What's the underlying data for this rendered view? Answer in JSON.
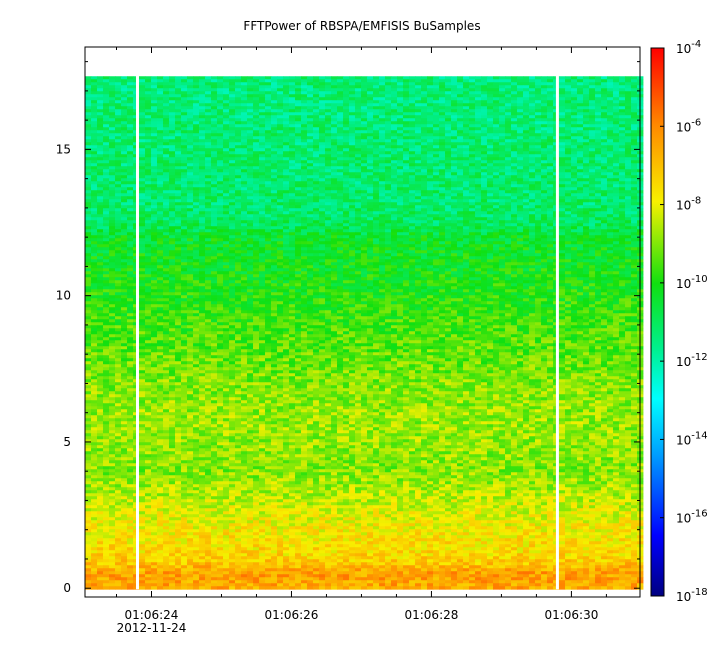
{
  "chart_data": {
    "type": "heatmap",
    "title": "FFTPower of RBSPA/EMFISIS  BuSamples",
    "xlabel": "",
    "ylabel": "",
    "x": {
      "ticks": [
        "01:06:24",
        "01:06:26",
        "01:06:28",
        "01:06:30"
      ],
      "date_label": "2012-11-24",
      "range_seconds": [
        "01:06:23.05",
        "01:06:30.98"
      ]
    },
    "ylim": [
      -0.3,
      18.5
    ],
    "yticks": [
      0,
      5,
      10,
      15
    ],
    "data_ylim": [
      0,
      17.5
    ],
    "gaps": [
      "01:06:23.8",
      "01:06:29.8"
    ],
    "colorbar": {
      "scale": "log",
      "range": [
        1e-18,
        0.0001
      ],
      "tick_labels": [
        {
          "base": "10",
          "exp": "-4"
        },
        {
          "base": "10",
          "exp": "-6"
        },
        {
          "base": "10",
          "exp": "-8"
        },
        {
          "base": "10",
          "exp": "-10"
        },
        {
          "base": "10",
          "exp": "-12"
        },
        {
          "base": "10",
          "exp": "-14"
        },
        {
          "base": "10",
          "exp": "-16"
        },
        {
          "base": "10",
          "exp": "-18"
        }
      ]
    },
    "power_profile": [
      {
        "y": 0.0,
        "log_power": -6.6
      },
      {
        "y": 0.5,
        "log_power": -6.4
      },
      {
        "y": 1.0,
        "log_power": -7.4
      },
      {
        "y": 2.0,
        "log_power": -7.8
      },
      {
        "y": 3.0,
        "log_power": -8.4
      },
      {
        "y": 4.0,
        "log_power": -9.0
      },
      {
        "y": 5.0,
        "log_power": -8.8
      },
      {
        "y": 6.0,
        "log_power": -8.8
      },
      {
        "y": 7.0,
        "log_power": -9.0
      },
      {
        "y": 8.0,
        "log_power": -9.3
      },
      {
        "y": 9.0,
        "log_power": -9.6
      },
      {
        "y": 10.0,
        "log_power": -9.9
      },
      {
        "y": 11.0,
        "log_power": -10.2
      },
      {
        "y": 12.0,
        "log_power": -10.4
      },
      {
        "y": 12.4,
        "log_power": -11.0
      },
      {
        "y": 13.0,
        "log_power": -11.2
      },
      {
        "y": 15.0,
        "log_power": -11.3
      },
      {
        "y": 17.5,
        "log_power": -11.4
      }
    ]
  }
}
